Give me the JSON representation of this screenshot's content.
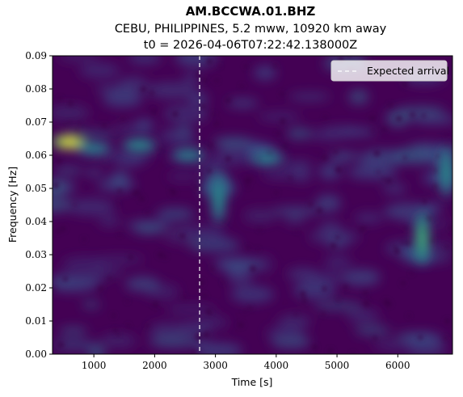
{
  "chart_data": {
    "type": "heatmap",
    "title": "AM.BCCWA.01.BHZ",
    "subtitle_lines": [
      "CEBU, PHILIPPINES, 5.2 mww, 10920 km away",
      "t0 = 2026-04-06T07:22:42.138000Z"
    ],
    "xlabel": "Time [s]",
    "ylabel": "Frequency [Hz]",
    "xlim": [
      320,
      6900
    ],
    "ylim": [
      0.0,
      0.09
    ],
    "xticks": [
      1000,
      2000,
      3000,
      4000,
      5000,
      6000
    ],
    "xtick_labels": [
      "1000",
      "2000",
      "3000",
      "4000",
      "5000",
      "6000"
    ],
    "yticks": [
      0.0,
      0.01,
      0.02,
      0.03,
      0.04,
      0.05,
      0.06,
      0.07,
      0.08,
      0.09
    ],
    "ytick_labels": [
      "0.00",
      "0.01",
      "0.02",
      "0.03",
      "0.04",
      "0.05",
      "0.06",
      "0.07",
      "0.08",
      "0.09"
    ],
    "colormap": "viridis",
    "grid": false,
    "expected_arrival": {
      "time": 2740,
      "label": "Expected arrival",
      "color": "#ffffff",
      "style": "dashed"
    },
    "legend": {
      "placement": "top-right",
      "entries": [
        "Expected arrival"
      ]
    },
    "energy_features": [
      {
        "time": 600,
        "freq": 0.064,
        "intensity": 1.0
      },
      {
        "time": 1000,
        "freq": 0.062,
        "intensity": 0.45
      },
      {
        "time": 1750,
        "freq": 0.063,
        "intensity": 0.5
      },
      {
        "time": 2550,
        "freq": 0.06,
        "intensity": 0.45
      },
      {
        "time": 3050,
        "freq": 0.047,
        "intensity": 0.5
      },
      {
        "time": 3850,
        "freq": 0.059,
        "intensity": 0.45
      },
      {
        "time": 6400,
        "freq": 0.035,
        "intensity": 0.65
      },
      {
        "time": 6800,
        "freq": 0.055,
        "intensity": 0.5
      }
    ]
  }
}
